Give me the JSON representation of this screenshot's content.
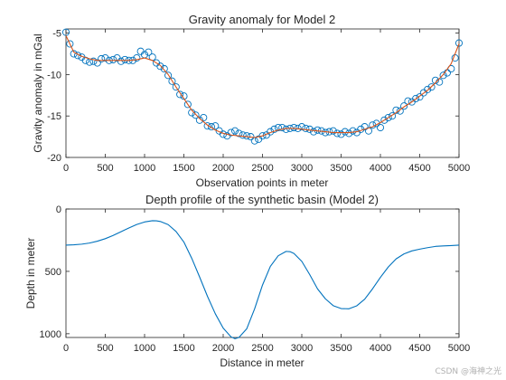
{
  "chart_data": [
    {
      "type": "line",
      "title": "Gravity anomaly for Model 2",
      "xlabel": "Observation points in meter",
      "ylabel": "Gravity anomaly in mGal",
      "xlim": [
        0,
        5000
      ],
      "ylim": [
        -20,
        -4.5
      ],
      "xticks": [
        "0",
        "500",
        "1000",
        "1500",
        "2000",
        "2500",
        "3000",
        "3500",
        "4000",
        "4500",
        "5000"
      ],
      "xtick_values": [
        0,
        500,
        1000,
        1500,
        2000,
        2500,
        3000,
        3500,
        4000,
        4500,
        5000
      ],
      "yticks": [
        "-5",
        "-10",
        "-15",
        "-20"
      ],
      "ytick_values": [
        -5,
        -10,
        -15,
        -20
      ],
      "grid": false,
      "series": [
        {
          "style": "markers",
          "marker": "circle",
          "color": "#0072BD",
          "x": [
            0,
            50,
            100,
            150,
            200,
            250,
            300,
            350,
            400,
            450,
            500,
            550,
            600,
            650,
            700,
            750,
            800,
            850,
            900,
            950,
            1000,
            1050,
            1100,
            1150,
            1200,
            1250,
            1300,
            1350,
            1400,
            1450,
            1500,
            1550,
            1600,
            1650,
            1700,
            1750,
            1800,
            1850,
            1900,
            1950,
            2000,
            2050,
            2100,
            2150,
            2200,
            2250,
            2300,
            2350,
            2400,
            2450,
            2500,
            2550,
            2600,
            2650,
            2700,
            2750,
            2800,
            2850,
            2900,
            2950,
            3000,
            3050,
            3100,
            3150,
            3200,
            3250,
            3300,
            3350,
            3400,
            3450,
            3500,
            3550,
            3600,
            3650,
            3700,
            3750,
            3800,
            3850,
            3900,
            3950,
            4000,
            4050,
            4100,
            4150,
            4200,
            4250,
            4300,
            4350,
            4400,
            4450,
            4500,
            4550,
            4600,
            4650,
            4700,
            4750,
            4800,
            4850,
            4900,
            4950,
            5000
          ],
          "y": [
            -4.9,
            -6.3,
            -7.5,
            -7.7,
            -7.9,
            -8.3,
            -8.5,
            -8.4,
            -8.6,
            -8.1,
            -8.0,
            -8.3,
            -8.2,
            -8.0,
            -8.4,
            -8.2,
            -8.3,
            -8.3,
            -8.0,
            -7.2,
            -7.6,
            -7.3,
            -7.9,
            -8.6,
            -9.0,
            -9.3,
            -10.1,
            -10.8,
            -11.5,
            -12.4,
            -12.6,
            -13.6,
            -14.6,
            -14.9,
            -15.5,
            -15.2,
            -16.2,
            -16.3,
            -16.2,
            -16.8,
            -17.2,
            -17.4,
            -17.0,
            -16.8,
            -17.1,
            -17.3,
            -17.4,
            -17.5,
            -18.0,
            -17.8,
            -17.4,
            -17.3,
            -16.9,
            -16.6,
            -16.4,
            -16.4,
            -16.6,
            -16.5,
            -16.4,
            -16.5,
            -16.3,
            -16.5,
            -16.6,
            -16.9,
            -16.7,
            -16.8,
            -17.0,
            -16.9,
            -16.8,
            -17.1,
            -17.2,
            -16.9,
            -17.1,
            -16.8,
            -17.0,
            -16.6,
            -16.3,
            -16.8,
            -16.1,
            -15.9,
            -16.4,
            -15.5,
            -15.2,
            -15.0,
            -14.3,
            -14.4,
            -13.8,
            -13.2,
            -13.3,
            -12.9,
            -12.7,
            -12.2,
            -11.8,
            -11.5,
            -10.7,
            -10.9,
            -10.1,
            -9.8,
            -9.3,
            -8.0,
            -6.2
          ]
        },
        {
          "style": "line",
          "color": "#D95319",
          "x": [
            0,
            100,
            200,
            300,
            400,
            500,
            600,
            700,
            800,
            900,
            1000,
            1100,
            1200,
            1300,
            1400,
            1500,
            1600,
            1700,
            1800,
            1900,
            2000,
            2100,
            2200,
            2300,
            2400,
            2500,
            2600,
            2700,
            2800,
            2900,
            3000,
            3100,
            3200,
            3300,
            3400,
            3500,
            3600,
            3700,
            3800,
            3900,
            4000,
            4100,
            4200,
            4300,
            4400,
            4500,
            4600,
            4700,
            4800,
            4900,
            5000
          ],
          "y": [
            -5.3,
            -7.3,
            -7.8,
            -8.1,
            -8.3,
            -8.3,
            -8.3,
            -8.3,
            -8.3,
            -8.2,
            -8.0,
            -8.3,
            -8.9,
            -10.0,
            -11.5,
            -12.9,
            -14.3,
            -15.3,
            -16.1,
            -16.7,
            -17.1,
            -17.3,
            -17.4,
            -17.5,
            -17.6,
            -17.4,
            -17.0,
            -16.7,
            -16.5,
            -16.5,
            -16.6,
            -16.7,
            -16.8,
            -16.9,
            -17.0,
            -17.0,
            -17.0,
            -16.9,
            -16.6,
            -16.3,
            -15.8,
            -15.2,
            -14.6,
            -13.9,
            -13.3,
            -12.6,
            -11.9,
            -11.0,
            -10.0,
            -8.7,
            -6.3
          ]
        }
      ]
    },
    {
      "type": "line",
      "title": "Depth profile of the synthetic basin (Model 2)",
      "xlabel": "Distance in meter",
      "ylabel": "Depth in meter",
      "xlim": [
        0,
        5000
      ],
      "ylim": [
        1030,
        0
      ],
      "y_reversed": true,
      "xticks": [
        "0",
        "500",
        "1000",
        "1500",
        "2000",
        "2500",
        "3000",
        "3500",
        "4000",
        "4500",
        "5000"
      ],
      "xtick_values": [
        0,
        500,
        1000,
        1500,
        2000,
        2500,
        3000,
        3500,
        4000,
        4500,
        5000
      ],
      "yticks": [
        "0",
        "500",
        "1000"
      ],
      "ytick_values": [
        0,
        500,
        1000
      ],
      "grid": false,
      "series": [
        {
          "style": "line",
          "color": "#0072BD",
          "x": [
            0,
            100,
            200,
            300,
            400,
            500,
            600,
            700,
            800,
            900,
            1000,
            1100,
            1150,
            1200,
            1300,
            1400,
            1500,
            1600,
            1700,
            1800,
            1900,
            2000,
            2100,
            2150,
            2200,
            2300,
            2400,
            2500,
            2600,
            2700,
            2800,
            2850,
            2900,
            3000,
            3100,
            3200,
            3300,
            3400,
            3500,
            3600,
            3700,
            3800,
            3900,
            4000,
            4100,
            4200,
            4300,
            4400,
            4500,
            4600,
            4700,
            4800,
            4900,
            5000
          ],
          "y": [
            290,
            287,
            282,
            273,
            258,
            238,
            212,
            182,
            152,
            124,
            104,
            94,
            95,
            100,
            125,
            180,
            265,
            395,
            545,
            700,
            840,
            955,
            1025,
            1040,
            1030,
            960,
            800,
            610,
            460,
            375,
            340,
            342,
            356,
            420,
            525,
            640,
            720,
            775,
            798,
            800,
            776,
            723,
            640,
            548,
            465,
            400,
            360,
            336,
            322,
            310,
            300,
            296,
            293,
            290
          ]
        }
      ]
    }
  ],
  "watermark": "CSDN @海神之光"
}
